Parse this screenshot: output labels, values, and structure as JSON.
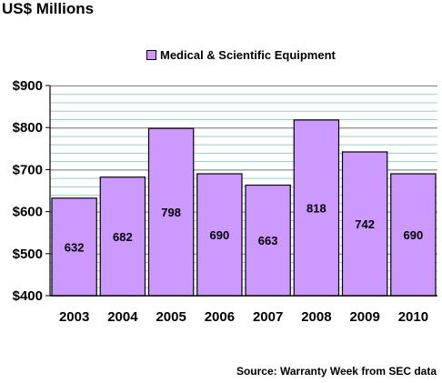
{
  "chart_data": {
    "type": "bar",
    "title": "US$ Millions",
    "source": "Source: Warranty Week from SEC data",
    "categories": [
      "2003",
      "2004",
      "2005",
      "2006",
      "2007",
      "2008",
      "2009",
      "2010"
    ],
    "series": [
      {
        "name": "Medical & Scientific Equipment",
        "values": [
          632,
          682,
          798,
          690,
          663,
          818,
          742,
          690
        ],
        "color": "#cc99ff"
      }
    ],
    "data_labels": [
      "632",
      "682",
      "798",
      "690",
      "663",
      "818",
      "742",
      "690"
    ],
    "y_ticks": [
      400,
      500,
      600,
      700,
      800,
      900
    ],
    "y_tick_labels": [
      "$400",
      "$500",
      "$600",
      "$700",
      "$800",
      "$900"
    ],
    "ylim": [
      400,
      900
    ],
    "minor_grid_step": 20,
    "grid": true,
    "grid_color": "#99cccc",
    "legend_position": "top-center"
  }
}
